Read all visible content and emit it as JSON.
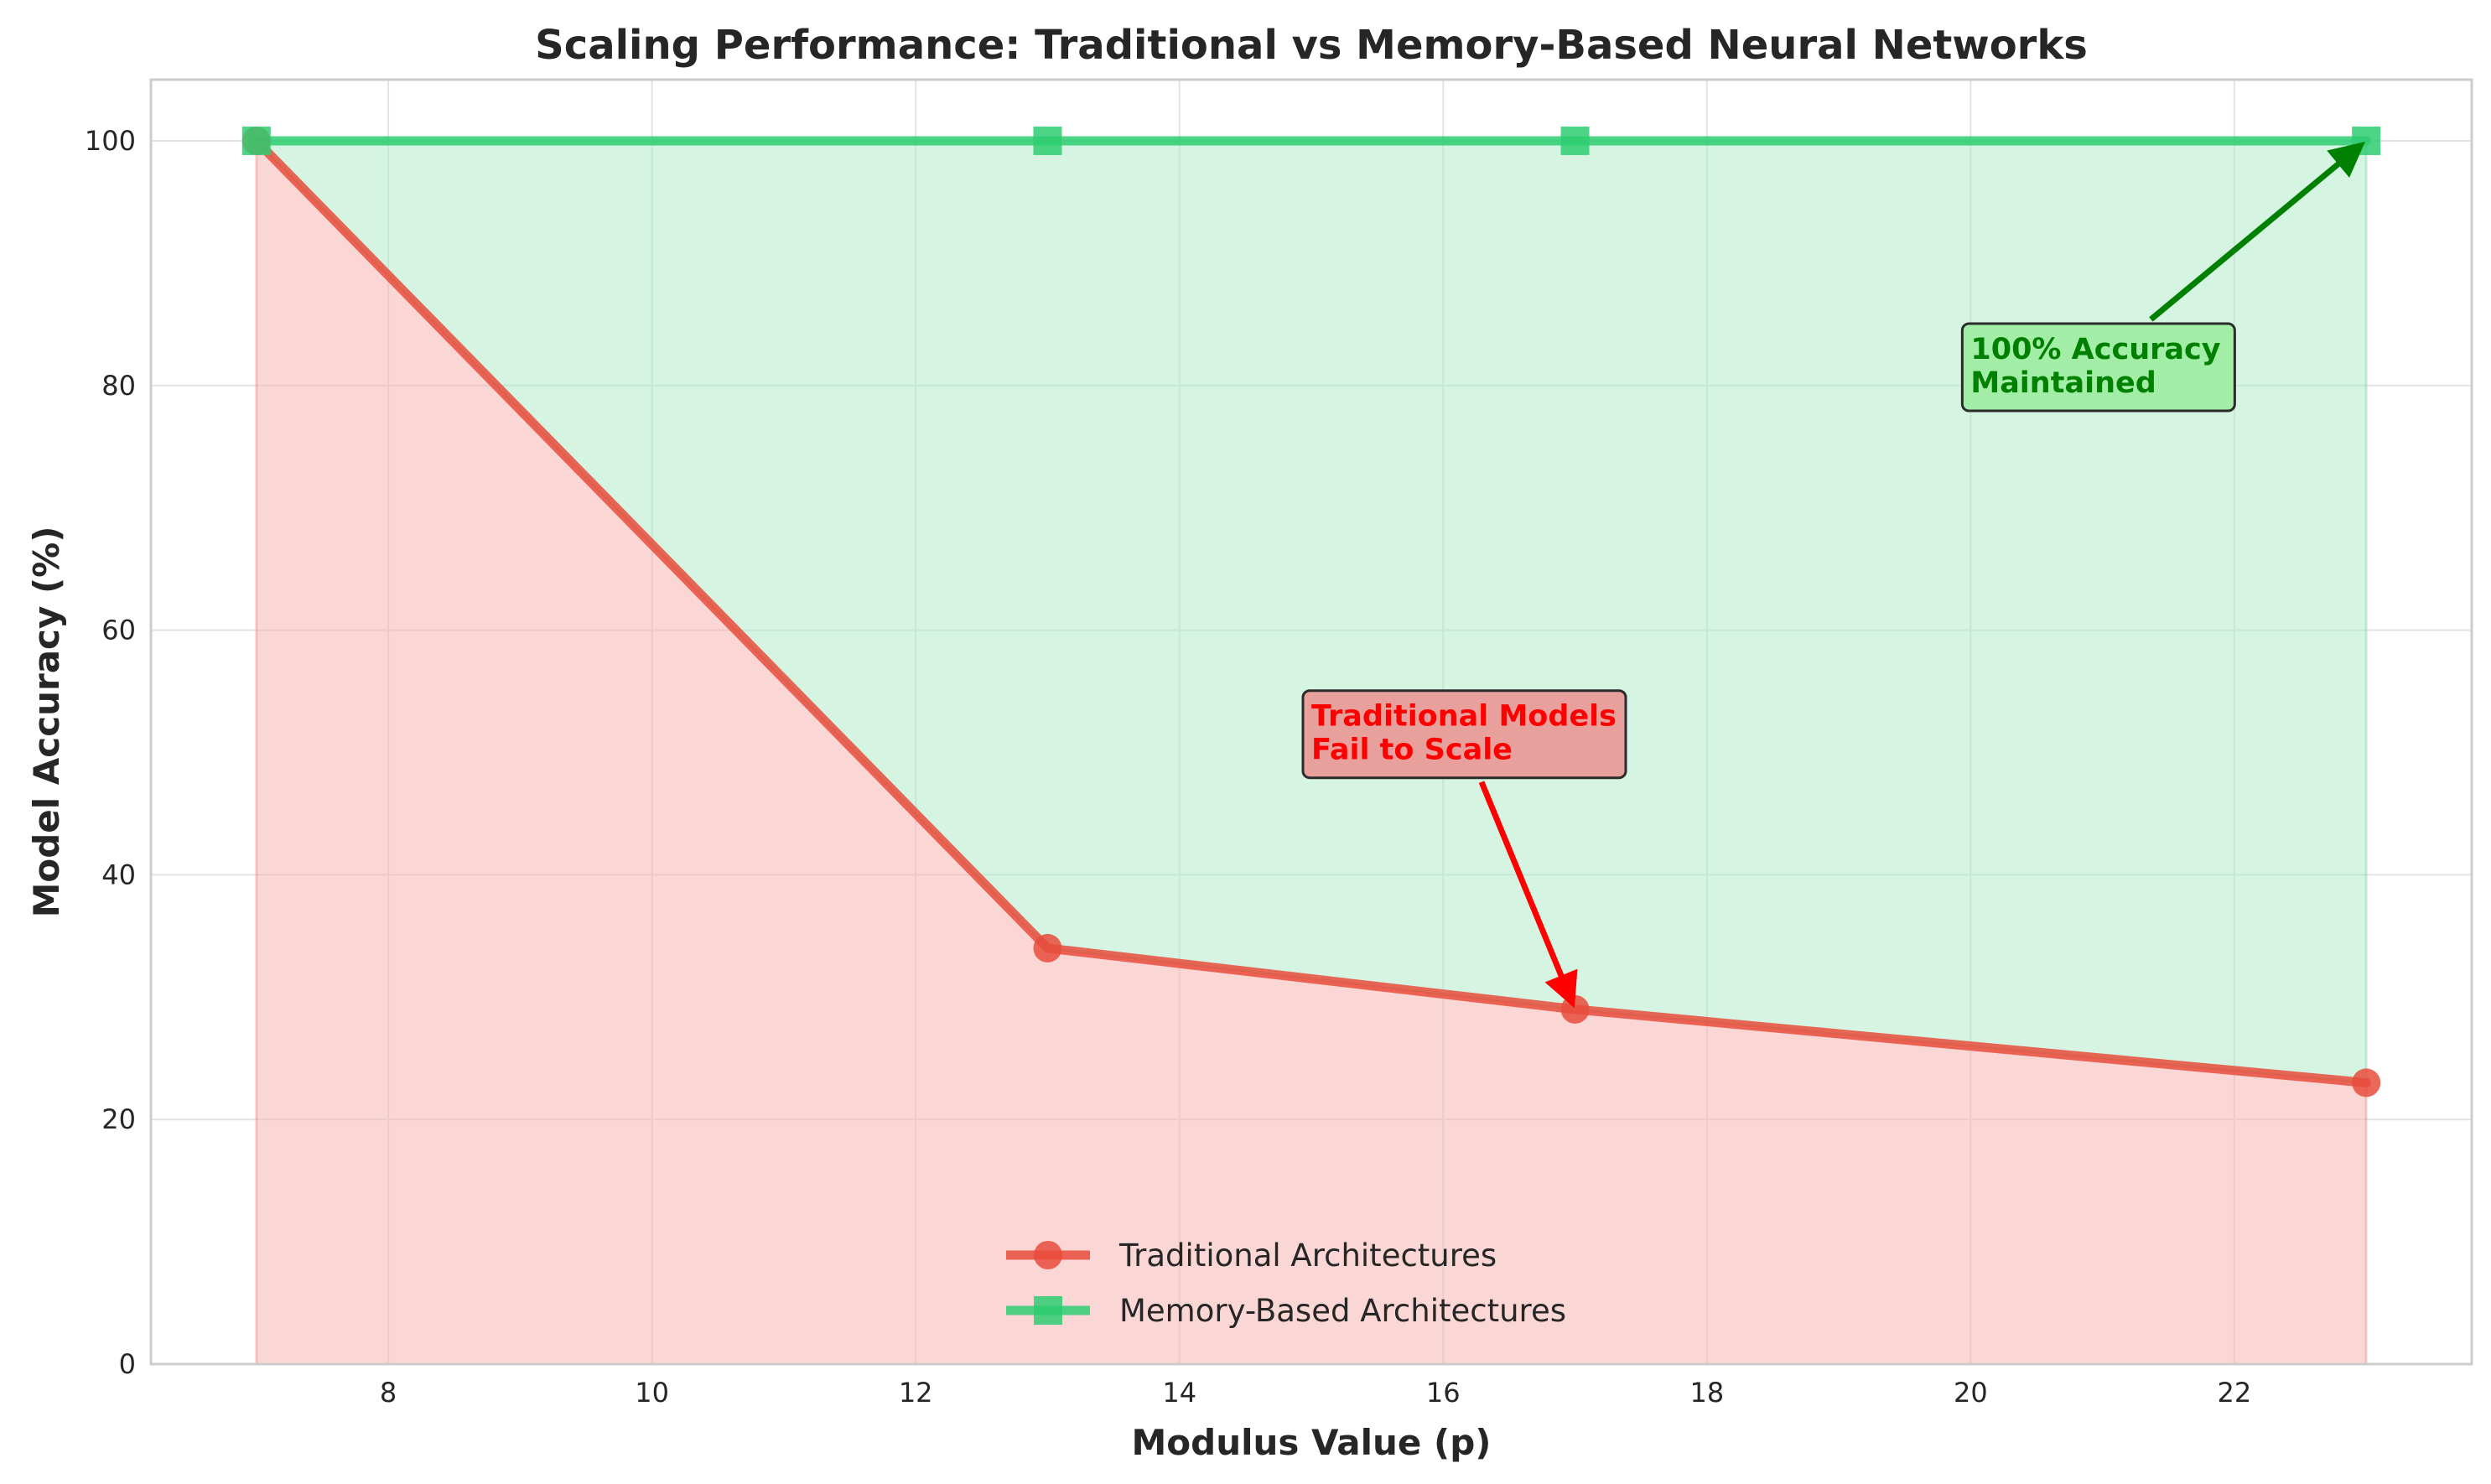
{
  "chart_data": {
    "type": "area",
    "title": "Scaling Performance: Traditional vs Memory-Based Neural Networks",
    "xlabel": "Modulus Value (p)",
    "ylabel": "Model Accuracy (%)",
    "x": [
      7,
      13,
      17,
      23
    ],
    "xlim": [
      6.2,
      23.8
    ],
    "ylim": [
      0,
      105
    ],
    "xticks": [
      8,
      10,
      12,
      14,
      16,
      18,
      20,
      22
    ],
    "yticks": [
      0,
      20,
      40,
      60,
      80,
      100
    ],
    "grid": true,
    "legend_position": "bottom-center",
    "series": [
      {
        "name": "Traditional Architectures",
        "values": [
          100,
          34,
          29,
          23
        ],
        "color": "#e74c3c",
        "fill_color": "#f5b7b1",
        "marker": "circle"
      },
      {
        "name": "Memory-Based Architectures",
        "values": [
          100,
          100,
          100,
          100
        ],
        "color": "#2ecc71",
        "fill_color": "#abebc6",
        "marker": "square"
      }
    ],
    "annotations": [
      {
        "id": "traditional",
        "lines": [
          "Traditional Models",
          "Fail to Scale"
        ],
        "target": [
          17,
          29
        ],
        "text_at": [
          15,
          53
        ],
        "text_color": "#ff0000",
        "box_color": "#e8a09c",
        "arrow_color": "#ff0000"
      },
      {
        "id": "memory",
        "lines": [
          "100% Accuracy",
          "Maintained"
        ],
        "target": [
          23,
          100
        ],
        "text_at": [
          20,
          83
        ],
        "text_color": "#008000",
        "box_color": "#a3eea6",
        "arrow_color": "#008000"
      }
    ]
  }
}
